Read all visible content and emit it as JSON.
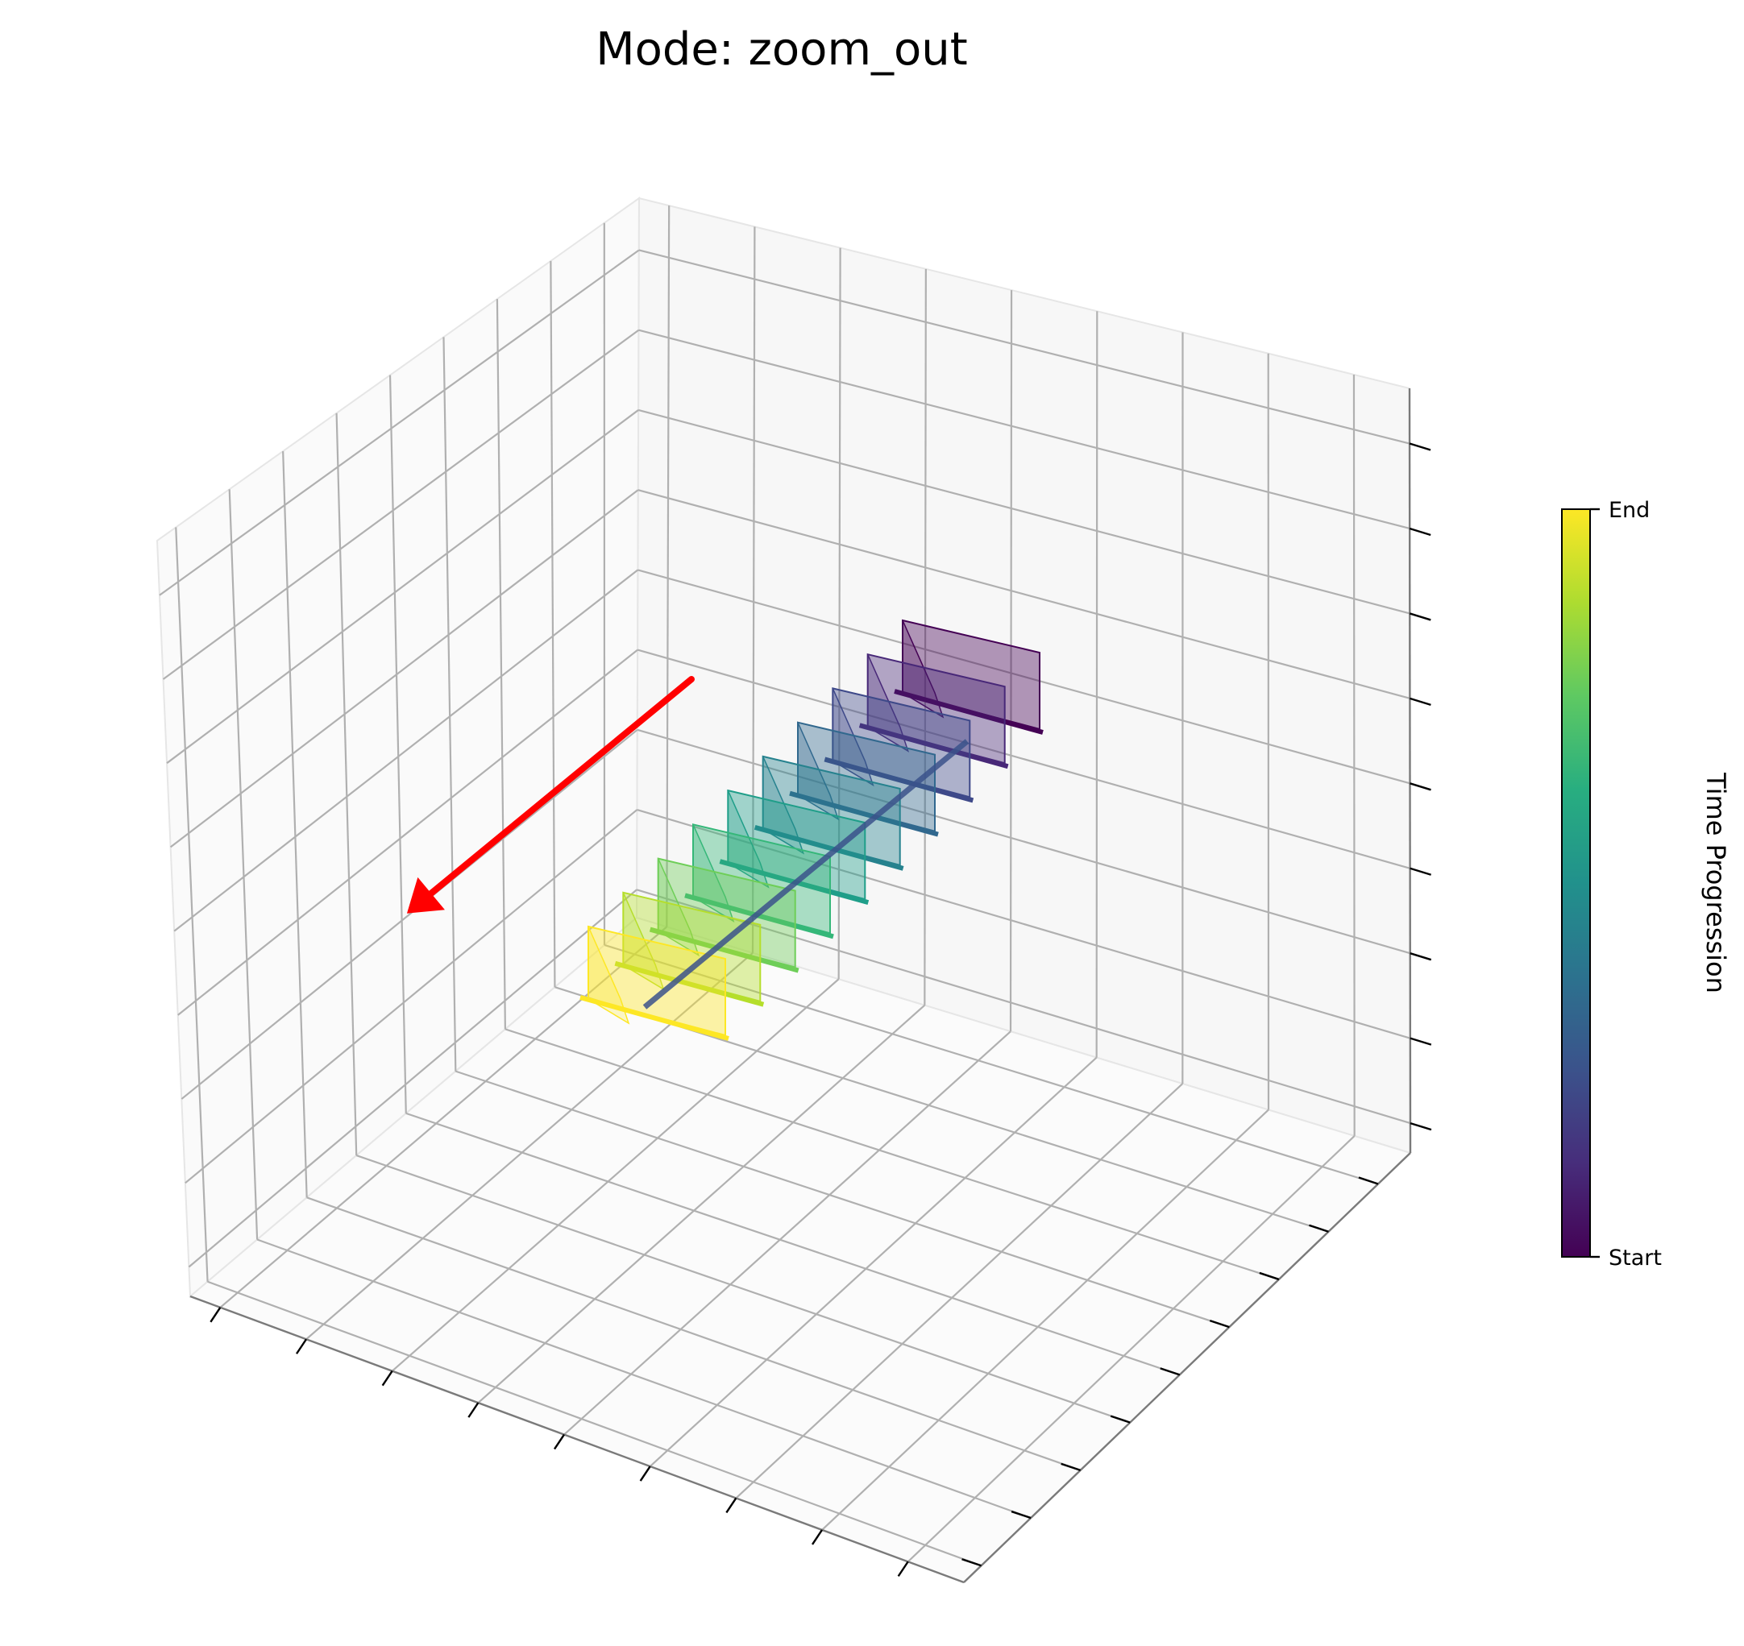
{
  "title": "Mode: zoom_out",
  "colorbar": {
    "label": "Time Progression",
    "tick_start": "Start",
    "tick_end": "End",
    "colormap": "viridis"
  },
  "arrow_color": "#ff0000",
  "chart_data": {
    "type": "3d-camera-path",
    "title": "Mode: zoom_out",
    "grid": true,
    "frames": 10,
    "direction": "zoom_out",
    "colorbar_label": "Time Progression",
    "colorbar_ticks": [
      "Start",
      "End"
    ],
    "tick_labels_shown": false
  }
}
